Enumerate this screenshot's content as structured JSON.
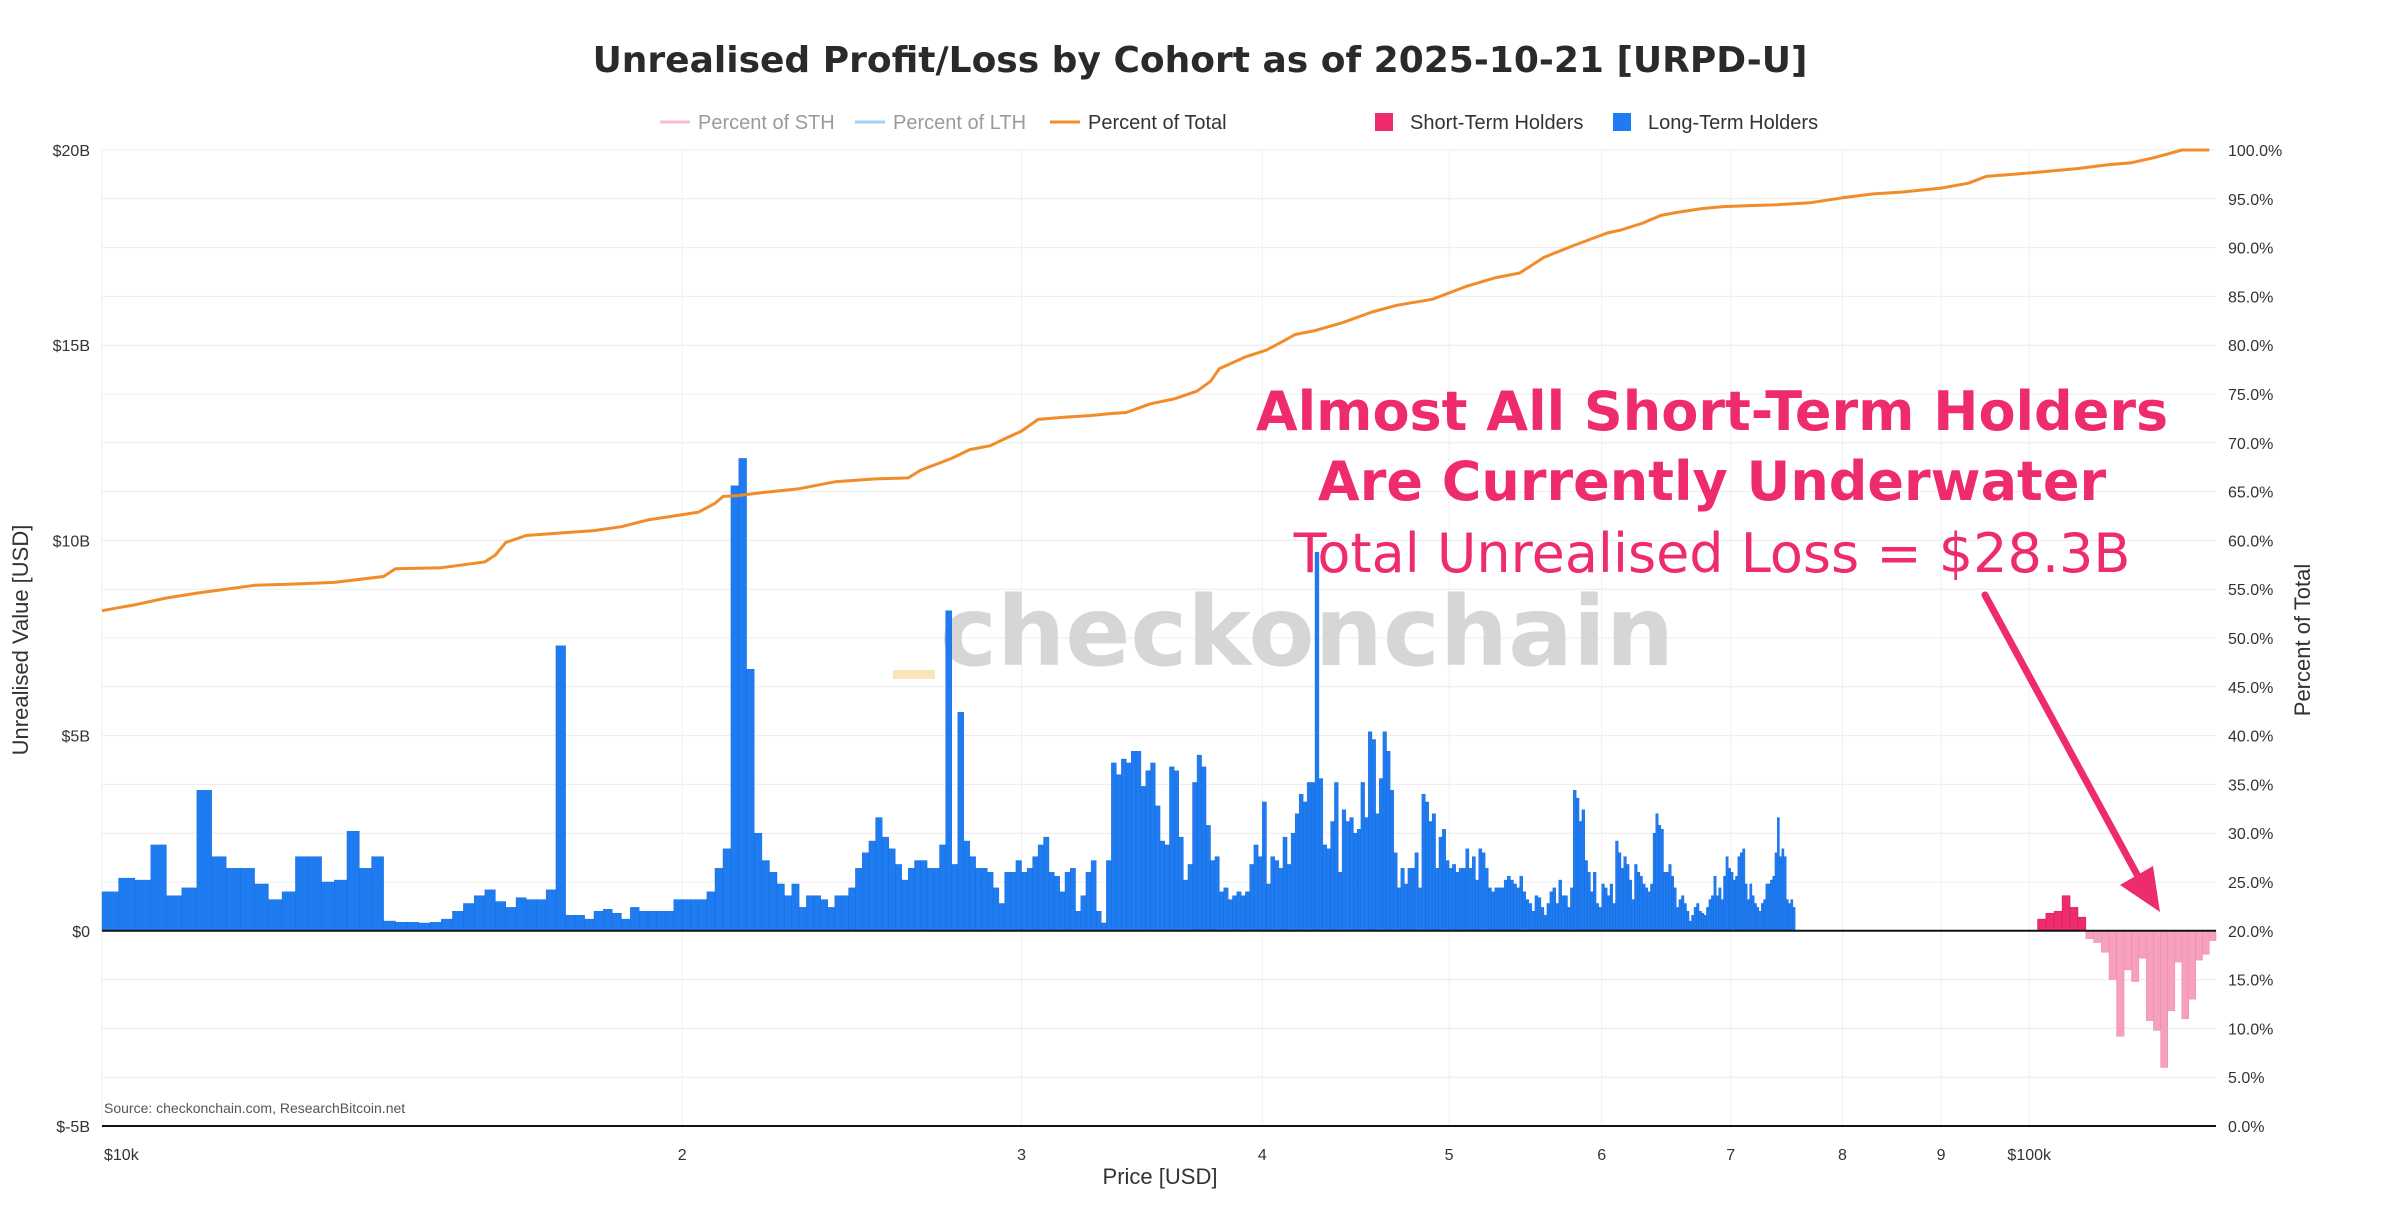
{
  "chart_data": {
    "type": "bar",
    "title": "Unrealised Profit/Loss by Cohort as of 2025-10-21 [URPD-U]",
    "xlabel": "Price [USD]",
    "ylabel": "Unrealised Value [USD]",
    "y2label": "Percent of Total",
    "x_scale": "log",
    "xlim": [
      10000,
      125000
    ],
    "ylim": [
      -5,
      20
    ],
    "y2lim": [
      0,
      100
    ],
    "x_ticks": [
      {
        "value": 10000,
        "label": "$10k"
      },
      {
        "value": 20000,
        "label": "2"
      },
      {
        "value": 30000,
        "label": "3"
      },
      {
        "value": 40000,
        "label": "4"
      },
      {
        "value": 50000,
        "label": "5"
      },
      {
        "value": 60000,
        "label": "6"
      },
      {
        "value": 70000,
        "label": "7"
      },
      {
        "value": 80000,
        "label": "8"
      },
      {
        "value": 90000,
        "label": "9"
      },
      {
        "value": 100000,
        "label": "$100k"
      }
    ],
    "y_ticks": [
      {
        "value": 20,
        "label": "$20B"
      },
      {
        "value": 15,
        "label": "$15B"
      },
      {
        "value": 10,
        "label": "$10B"
      },
      {
        "value": 5,
        "label": "$5B"
      },
      {
        "value": 0,
        "label": "$0"
      },
      {
        "value": -5,
        "label": "$-5B"
      }
    ],
    "y2_ticks": [
      {
        "value": 100,
        "label": "100.0%"
      },
      {
        "value": 95,
        "label": "95.0%"
      },
      {
        "value": 90,
        "label": "90.0%"
      },
      {
        "value": 85,
        "label": "85.0%"
      },
      {
        "value": 80,
        "label": "80.0%"
      },
      {
        "value": 75,
        "label": "75.0%"
      },
      {
        "value": 70,
        "label": "70.0%"
      },
      {
        "value": 65,
        "label": "65.0%"
      },
      {
        "value": 60,
        "label": "60.0%"
      },
      {
        "value": 55,
        "label": "55.0%"
      },
      {
        "value": 50,
        "label": "50.0%"
      },
      {
        "value": 45,
        "label": "45.0%"
      },
      {
        "value": 40,
        "label": "40.0%"
      },
      {
        "value": 35,
        "label": "35.0%"
      },
      {
        "value": 30,
        "label": "30.0%"
      },
      {
        "value": 25,
        "label": "25.0%"
      },
      {
        "value": 20,
        "label": "20.0%"
      },
      {
        "value": 15,
        "label": "15.0%"
      },
      {
        "value": 10,
        "label": "10.0%"
      },
      {
        "value": 5,
        "label": "5.0%"
      },
      {
        "value": 0,
        "label": "0.0%"
      }
    ],
    "grid": true,
    "legend": {
      "position": "top-center",
      "items": [
        {
          "name": "Percent of STH",
          "color": "#f48fb1",
          "kind": "line",
          "dimmed": true
        },
        {
          "name": "Percent of LTH",
          "color": "#64b5f6",
          "kind": "line",
          "dimmed": true
        },
        {
          "name": "Percent of Total",
          "color": "#f28c28",
          "kind": "line",
          "dimmed": false
        },
        {
          "name": "Short-Term Holders",
          "color": "#ee2b6c",
          "kind": "box",
          "dimmed": false
        },
        {
          "name": "Long-Term Holders",
          "color": "#1f7cf0",
          "kind": "box",
          "dimmed": false
        }
      ]
    },
    "colors": {
      "lth": "#1f7cf0",
      "sth_profit": "#ee2b6c",
      "sth_loss": "#f6a0bc",
      "total_line": "#f28c28",
      "annotation": "#ee2b6c"
    },
    "series": [
      {
        "name": "Long-Term Holders",
        "x_start": 10000,
        "x_step": 200,
        "values": [
          1.0,
          1.35,
          1.3,
          2.2,
          0.9,
          1.1,
          3.6,
          1.9,
          1.6,
          1.6,
          1.2,
          0.8,
          1.0,
          1.9,
          1.9,
          1.25,
          1.3,
          2.55,
          1.6,
          1.9,
          0.25,
          0.22,
          0.22,
          0.2,
          0.22,
          0.3,
          0.5,
          0.7,
          0.9,
          1.05,
          0.75,
          0.6,
          0.85,
          0.8,
          0.8,
          1.05,
          7.3,
          0.4,
          0.4,
          0.3,
          0.5,
          0.55,
          0.45,
          0.3,
          0.6,
          0.5,
          0.5,
          0.5,
          0.5,
          0.8,
          0.8,
          0.8,
          0.8,
          1.0,
          1.6,
          2.1,
          11.4,
          12.1,
          6.7,
          2.5,
          1.8,
          1.5,
          1.2,
          0.9,
          1.2,
          0.6,
          0.9,
          0.9,
          0.8,
          0.6,
          0.9,
          0.9,
          1.1,
          1.6,
          2.0,
          2.3,
          2.9,
          2.4,
          2.1,
          1.7,
          1.3,
          1.6,
          1.8,
          1.8,
          1.6,
          1.6,
          2.2,
          8.2,
          1.7,
          5.6,
          2.3,
          1.9,
          1.6,
          1.6,
          1.5,
          1.1,
          0.7,
          1.5,
          1.5,
          1.8,
          1.5,
          1.6,
          1.9,
          2.2,
          2.4,
          1.5,
          1.4,
          1.0,
          1.5,
          1.6,
          0.5,
          0.9,
          1.5,
          1.8,
          0.5,
          0.2,
          1.8,
          4.3,
          4.0,
          4.4,
          4.3,
          4.6,
          4.6,
          3.7,
          4.1,
          4.3,
          3.2,
          2.3,
          2.2,
          4.2,
          4.1,
          2.4,
          1.3,
          1.7,
          3.8,
          4.5,
          4.2,
          2.7,
          1.8,
          1.9,
          1.0,
          1.1,
          0.8,
          0.9,
          1.0,
          0.9,
          1.0,
          1.7,
          2.2,
          1.9,
          3.3,
          1.2,
          1.9,
          1.8,
          1.6,
          2.4,
          1.7,
          2.5,
          3.0,
          3.5,
          3.3,
          3.8,
          3.8,
          9.7,
          3.9,
          2.2,
          2.1,
          2.8,
          3.8,
          1.5,
          3.1,
          2.8,
          2.9,
          2.5,
          2.6,
          3.8,
          2.9,
          5.1,
          4.9,
          3.0,
          3.9,
          5.1,
          4.6,
          3.6,
          2.0,
          1.1,
          1.6,
          1.2,
          1.6,
          1.6,
          2.0,
          1.1,
          3.5,
          3.3,
          2.8,
          3.0,
          1.6,
          2.4,
          2.6,
          1.8,
          1.6,
          1.7,
          1.5,
          1.6,
          1.6,
          2.1,
          1.6,
          1.9,
          1.3,
          2.1,
          2.0,
          1.6,
          1.1,
          1.0,
          1.1,
          1.1,
          1.1,
          1.3,
          1.4,
          1.3,
          1.2,
          1.1,
          1.4,
          1.0,
          0.8,
          0.7,
          0.5,
          0.9,
          0.85,
          0.6,
          0.4,
          0.7,
          1.0,
          1.1,
          0.7,
          1.3,
          0.9,
          0.9,
          0.6,
          1.1,
          3.6,
          3.4,
          2.8,
          3.1,
          1.8,
          1.5,
          1.0,
          1.5,
          0.7,
          0.6,
          1.2,
          1.1,
          0.9,
          1.2,
          0.7,
          2.3,
          2.0,
          1.6,
          1.9,
          1.7,
          1.3,
          0.8,
          1.7,
          1.5,
          1.4,
          1.2,
          1.1,
          1.0,
          1.2,
          2.5,
          3.0,
          2.7,
          2.6,
          1.5,
          1.5,
          1.7,
          1.4,
          1.1,
          0.6,
          0.8,
          0.9,
          0.7,
          0.5,
          0.25,
          0.4,
          0.6,
          0.7,
          0.5,
          0.45,
          0.4,
          0.6,
          0.8,
          0.9,
          1.4,
          0.9,
          1.1,
          0.8,
          1.4,
          1.9,
          1.6,
          1.5,
          1.3,
          1.4,
          1.9,
          2.0,
          2.1,
          1.2,
          0.8,
          1.2,
          0.9,
          0.7,
          0.6,
          0.5,
          0.7,
          0.8,
          1.2,
          1.2,
          1.3,
          1.4,
          2.0,
          2.9,
          1.9,
          2.1,
          1.9,
          0.8,
          0.7,
          0.8,
          0.6
        ]
      },
      {
        "name": "Short-Term Holders",
        "x": [
          101000,
          102000,
          103000,
          104000,
          105000,
          106000,
          107000,
          108000,
          109000,
          110000,
          111000,
          112000,
          113000,
          114000,
          115000,
          116000,
          117000,
          118000,
          119000,
          120000,
          121000,
          122000,
          123000,
          124000
        ],
        "values": [
          0.3,
          0.45,
          0.5,
          0.9,
          0.6,
          0.35,
          -0.2,
          -0.3,
          -0.55,
          -1.25,
          -2.7,
          -1.0,
          -1.3,
          -0.7,
          -2.3,
          -2.55,
          -3.5,
          -2.05,
          -0.8,
          -2.25,
          -1.75,
          -0.75,
          -0.6,
          -0.25
        ]
      },
      {
        "name": "Percent of Total",
        "x": [
          10000,
          10200,
          10400,
          10800,
          11200,
          12000,
          12500,
          13200,
          14000,
          14200,
          15000,
          15400,
          15800,
          16000,
          16200,
          16600,
          17400,
          18000,
          18600,
          19200,
          19800,
          20400,
          20800,
          21000,
          21400,
          22000,
          23000,
          24000,
          25200,
          26200,
          26600,
          27600,
          28200,
          28900,
          29400,
          30000,
          30600,
          31500,
          32600,
          33400,
          34000,
          35000,
          36000,
          37000,
          37600,
          38000,
          38400,
          39200,
          40200,
          41000,
          41600,
          42600,
          44000,
          45600,
          47000,
          49000,
          51000,
          52800,
          54400,
          56000,
          58000,
          60400,
          61400,
          63000,
          64400,
          65600,
          67600,
          69400,
          71600,
          74000,
          77000,
          80000,
          83000,
          86000,
          90000,
          93000,
          95000,
          98000,
          102000,
          106000,
          110000,
          113000,
          116000,
          118000,
          119000,
          120000,
          121000,
          122000,
          124000
        ],
        "values": [
          52.8,
          53.1,
          53.4,
          54.1,
          54.6,
          55.4,
          55.5,
          55.7,
          56.3,
          57.1,
          57.2,
          57.5,
          57.8,
          58.5,
          59.8,
          60.5,
          60.8,
          61.0,
          61.4,
          62.1,
          62.5,
          62.9,
          63.8,
          64.5,
          64.6,
          64.9,
          65.3,
          66.0,
          66.3,
          66.4,
          67.2,
          68.4,
          69.3,
          69.7,
          70.4,
          71.2,
          72.4,
          72.6,
          72.8,
          73.0,
          73.1,
          74.0,
          74.5,
          75.3,
          76.3,
          77.6,
          78.0,
          78.8,
          79.5,
          80.4,
          81.1,
          81.5,
          82.3,
          83.4,
          84.1,
          84.7,
          86.0,
          86.9,
          87.4,
          89.0,
          90.2,
          91.5,
          91.8,
          92.5,
          93.3,
          93.6,
          94.0,
          94.2,
          94.3,
          94.4,
          94.6,
          95.1,
          95.5,
          95.7,
          96.1,
          96.6,
          97.3,
          97.5,
          97.8,
          98.1,
          98.5,
          98.7,
          99.2,
          99.6,
          99.8,
          100.0,
          100.0,
          100.0,
          100.0
        ]
      }
    ],
    "annotation": {
      "line1": "Almost All Short-Term Holders",
      "line2": "Are Currently Underwater",
      "line3": "Total Unrealised Loss = $28.3B"
    },
    "watermark": "checkonchain",
    "source": "Source: checkonchain.com, ResearchBitcoin.net"
  }
}
